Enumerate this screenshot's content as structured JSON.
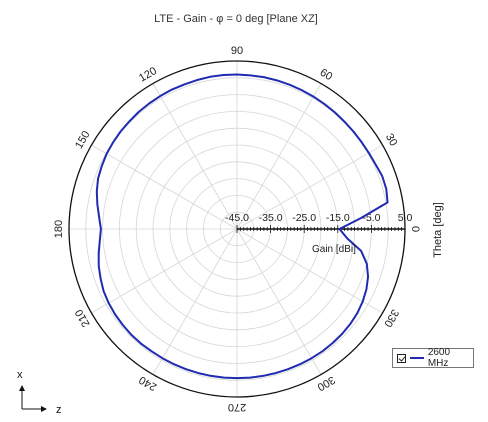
{
  "chart_data": {
    "type": "polar-line",
    "title": "LTE  - Gain - φ = 0 deg [Plane XZ]",
    "angle_label": "Theta [deg]",
    "radial_label": "Gain [dBi]",
    "angle_ticks": [
      "0",
      "30",
      "60",
      "90",
      "120",
      "150",
      "180",
      "210",
      "240",
      "270",
      "300",
      "330"
    ],
    "radial_ticks": [
      "-45.0",
      "-35.0",
      "-25.0",
      "-15.0",
      "-5.0",
      "5.0"
    ],
    "rlim": [
      -45,
      5
    ],
    "axis_labels": {
      "up": "x",
      "right": "z"
    },
    "series": [
      {
        "name": "2600 MHz",
        "color": "#1f2bb0",
        "theta": [
          0,
          5,
          10,
          15,
          20,
          25,
          30,
          35,
          40,
          45,
          50,
          55,
          60,
          65,
          70,
          75,
          80,
          85,
          90,
          95,
          100,
          105,
          110,
          115,
          120,
          125,
          130,
          135,
          140,
          145,
          150,
          155,
          160,
          165,
          170,
          175,
          180,
          185,
          190,
          195,
          200,
          205,
          210,
          215,
          220,
          225,
          230,
          235,
          240,
          245,
          250,
          255,
          260,
          265,
          270,
          275,
          280,
          285,
          290,
          295,
          300,
          305,
          310,
          315,
          320,
          325,
          330,
          335,
          340,
          345,
          350,
          355
        ],
        "gain": [
          -14.5,
          -8.0,
          0.5,
          1.0,
          1.0,
          0.5,
          0.3,
          0.2,
          0.2,
          0.2,
          0.3,
          0.4,
          0.5,
          0.6,
          0.7,
          0.8,
          0.9,
          0.9,
          1.0,
          1.0,
          1.0,
          0.9,
          0.8,
          0.8,
          0.7,
          0.6,
          0.5,
          0.3,
          0.2,
          0.0,
          -0.2,
          -0.6,
          -1.0,
          -1.8,
          -2.8,
          -3.8,
          -4.5,
          -4.0,
          -3.2,
          -2.4,
          -1.8,
          -1.2,
          -0.9,
          -0.7,
          -0.6,
          -0.5,
          -0.5,
          -0.6,
          -0.6,
          -0.6,
          -0.6,
          -0.6,
          -0.6,
          -0.6,
          -0.6,
          -0.6,
          -0.6,
          -0.6,
          -0.6,
          -0.6,
          -0.6,
          -0.6,
          -0.7,
          -0.8,
          -1.0,
          -1.3,
          -1.8,
          -2.5,
          -3.5,
          -5.0,
          -7.5,
          -12.0
        ]
      }
    ]
  }
}
